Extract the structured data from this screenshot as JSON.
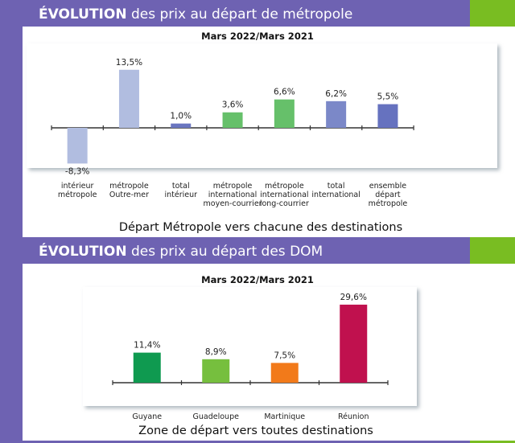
{
  "colors": {
    "purple": "#6e62b2",
    "green_strip": "#79bd22"
  },
  "chart_data": [
    {
      "type": "bar",
      "header_bold": "ÉVOLUTION",
      "header_rest": " des prix au départ de métropole",
      "title": "Mars 2022/Mars 2021",
      "xlabel": "Départ Métropole vers chacune des destinations",
      "ylabel": "",
      "categories": [
        [
          "intérieur",
          "métropole"
        ],
        [
          "métropole",
          "Outre-mer"
        ],
        [
          "total",
          "intérieur"
        ],
        [
          "métropole",
          "international",
          "moyen-courrier"
        ],
        [
          "métropole",
          "international",
          "long-courrier"
        ],
        [
          "total",
          "international"
        ],
        [
          "ensemble",
          "départ",
          "métropole"
        ]
      ],
      "values": [
        -8.3,
        13.5,
        1.0,
        3.6,
        6.6,
        6.2,
        5.5
      ],
      "labels": [
        "-8,3%",
        "13,5%",
        "1,0%",
        "3,6%",
        "6,6%",
        "6,2%",
        "5,5%"
      ],
      "bar_colors": [
        "#b1bde0",
        "#b1bde0",
        "#6a76c0",
        "#66c06a",
        "#66c06a",
        "#7b88c8",
        "#6672bf"
      ],
      "unit": "%",
      "grid": false
    },
    {
      "type": "bar",
      "header_bold": "ÉVOLUTION",
      "header_rest": " des prix au départ des DOM",
      "title": "Mars 2022/Mars 2021",
      "xlabel": "Zone de départ vers toutes destinations",
      "ylabel": "",
      "categories": [
        [
          "Guyane"
        ],
        [
          "Guadeloupe"
        ],
        [
          "Martinique"
        ],
        [
          "Réunion"
        ]
      ],
      "values": [
        11.4,
        8.9,
        7.5,
        29.6
      ],
      "labels": [
        "11,4%",
        "8,9%",
        "7,5%",
        "29,6%"
      ],
      "bar_colors": [
        "#0f9a50",
        "#76bf3e",
        "#f27a1a",
        "#c0114e"
      ],
      "unit": "%",
      "grid": false
    }
  ]
}
